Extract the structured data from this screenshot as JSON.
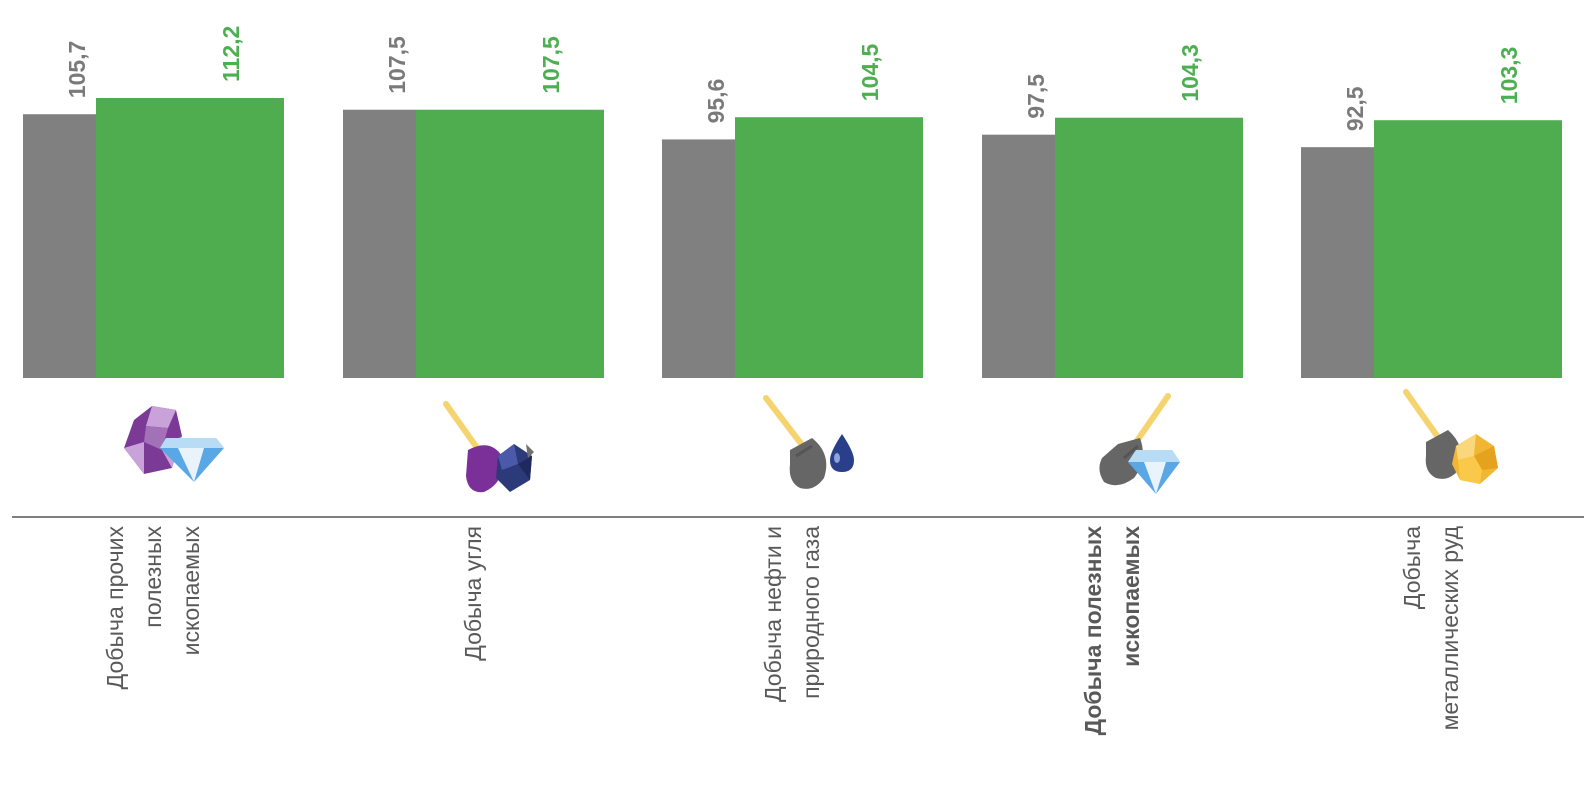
{
  "colors": {
    "prev_series": "#808080",
    "curr_series": "#4fad50",
    "axis": "#7f7f7f",
    "label_text": "#595959"
  },
  "chart_data": {
    "type": "bar",
    "categories": [
      {
        "lines": [
          "Добыча прочих",
          "полезных",
          "ископаемых"
        ],
        "bold": false,
        "icon": "gemstones-icon"
      },
      {
        "lines": [
          "Добыча угля"
        ],
        "bold": false,
        "icon": "coal-shovel-icon"
      },
      {
        "lines": [
          "Добыча нефти и",
          "природного газа"
        ],
        "bold": false,
        "icon": "oil-drop-shovel-icon"
      },
      {
        "lines": [
          "Добыча полезных",
          "ископаемых"
        ],
        "bold": true,
        "icon": "diamond-shovel-icon"
      },
      {
        "lines": [
          "Добыча",
          "металлических руд"
        ],
        "bold": false,
        "icon": "gold-ore-shovel-icon"
      }
    ],
    "series": [
      {
        "values": [
          105.7,
          107.5,
          95.6,
          97.5,
          92.5
        ],
        "labels": [
          "105,7",
          "107,5",
          "95,6",
          "97,5",
          "92,5"
        ]
      },
      {
        "values": [
          112.2,
          107.5,
          104.5,
          104.3,
          103.3
        ],
        "labels": [
          "112,2",
          "107,5",
          "104,5",
          "104,3",
          "103,3"
        ]
      }
    ],
    "ylim": [
      0,
      112.2
    ],
    "grid": false,
    "legend": "none"
  }
}
